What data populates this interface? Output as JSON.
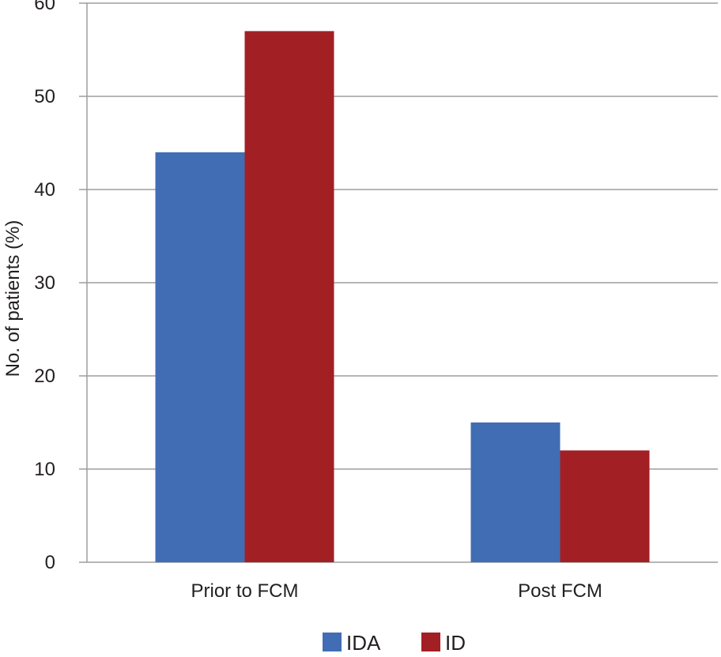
{
  "chart_data": {
    "type": "bar",
    "categories": [
      "Prior to FCM",
      "Post FCM"
    ],
    "series": [
      {
        "name": "IDA",
        "color": "#416db4",
        "values": [
          44,
          15
        ]
      },
      {
        "name": "ID",
        "color": "#a21f24",
        "values": [
          57,
          12
        ]
      }
    ],
    "ylabel": "No. of patients (%)",
    "ylim": [
      0,
      60
    ],
    "yticks": [
      0,
      10,
      20,
      30,
      40,
      50,
      60
    ],
    "grid": true,
    "legend": "bottom"
  }
}
